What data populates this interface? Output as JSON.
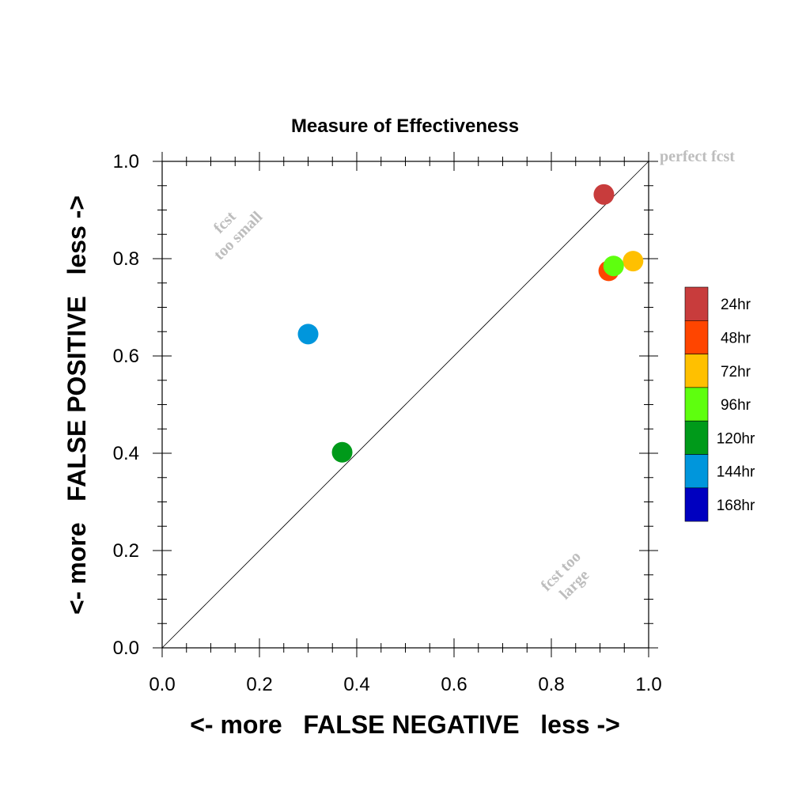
{
  "chart_data": {
    "type": "scatter",
    "title": "Measure of Effectiveness",
    "xlabel": "<- more   FALSE NEGATIVE   less ->",
    "ylabel": "<- more   FALSE POSITIVE   less ->",
    "xlim": [
      0,
      1
    ],
    "ylim": [
      0,
      1
    ],
    "xticks": [
      "0.0",
      "0.2",
      "0.4",
      "0.6",
      "0.8",
      "1.0"
    ],
    "yticks": [
      "0.0",
      "0.2",
      "0.4",
      "0.6",
      "0.8",
      "1.0"
    ],
    "grid": false,
    "reference_line": {
      "from": [
        0,
        0
      ],
      "to": [
        1,
        1
      ]
    },
    "annotations": {
      "perfect": "perfect fcst",
      "too_small": [
        "fcst",
        "too small"
      ],
      "too_large": [
        "fcst too",
        "large"
      ]
    },
    "legend_position": "right",
    "series": [
      {
        "name": "168hr",
        "color": "#0000c0",
        "points": []
      },
      {
        "name": "144hr",
        "color": "#0096dc",
        "points": [
          {
            "x": 0.3,
            "y": 0.645
          }
        ]
      },
      {
        "name": "120hr",
        "color": "#009a1a",
        "points": [
          {
            "x": 0.37,
            "y": 0.402
          }
        ]
      },
      {
        "name": "96hr",
        "color": "#5eff0e",
        "points": [
          {
            "x": 0.928,
            "y": 0.785
          }
        ]
      },
      {
        "name": "72hr",
        "color": "#ffc000",
        "points": [
          {
            "x": 0.968,
            "y": 0.795
          }
        ]
      },
      {
        "name": "48hr",
        "color": "#ff4500",
        "points": [
          {
            "x": 0.918,
            "y": 0.775
          }
        ]
      },
      {
        "name": "24hr",
        "color": "#c83c3c",
        "points": [
          {
            "x": 0.908,
            "y": 0.932
          }
        ]
      }
    ]
  }
}
